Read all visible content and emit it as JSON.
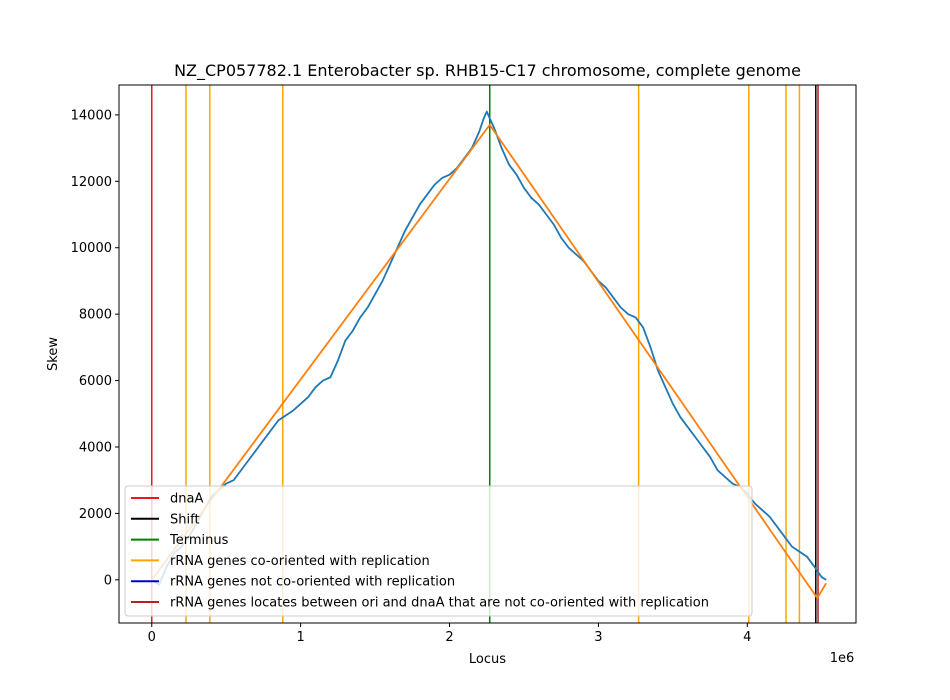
{
  "chart_data": {
    "type": "line",
    "title": "NZ_CP057782.1 Enterobacter sp. RHB15-C17 chromosome, complete genome",
    "xlabel": "Locus",
    "ylabel": "Skew",
    "x_multiplier_label": "1e6",
    "xlim": [
      -220000,
      4730000
    ],
    "ylim": [
      -1300,
      14900
    ],
    "x_ticks": [
      {
        "value": 0,
        "label": "0"
      },
      {
        "value": 1000000,
        "label": "1"
      },
      {
        "value": 2000000,
        "label": "2"
      },
      {
        "value": 3000000,
        "label": "3"
      },
      {
        "value": 4000000,
        "label": "4"
      }
    ],
    "y_ticks": [
      {
        "value": 0,
        "label": "0"
      },
      {
        "value": 2000,
        "label": "2000"
      },
      {
        "value": 4000,
        "label": "4000"
      },
      {
        "value": 6000,
        "label": "6000"
      },
      {
        "value": 8000,
        "label": "8000"
      },
      {
        "value": 10000,
        "label": "10000"
      },
      {
        "value": 12000,
        "label": "12000"
      },
      {
        "value": 14000,
        "label": "14000"
      }
    ],
    "series": [
      {
        "color": "#1f77b4",
        "points": [
          [
            0,
            0
          ],
          [
            50000,
            -150
          ],
          [
            100000,
            400
          ],
          [
            150000,
            800
          ],
          [
            200000,
            1000
          ],
          [
            250000,
            1300
          ],
          [
            300000,
            1700
          ],
          [
            350000,
            2100
          ],
          [
            400000,
            2500
          ],
          [
            450000,
            2700
          ],
          [
            500000,
            2900
          ],
          [
            550000,
            3000
          ],
          [
            600000,
            3300
          ],
          [
            650000,
            3600
          ],
          [
            700000,
            3900
          ],
          [
            750000,
            4200
          ],
          [
            800000,
            4500
          ],
          [
            850000,
            4800
          ],
          [
            900000,
            4950
          ],
          [
            950000,
            5100
          ],
          [
            1000000,
            5300
          ],
          [
            1050000,
            5500
          ],
          [
            1100000,
            5800
          ],
          [
            1150000,
            6000
          ],
          [
            1200000,
            6100
          ],
          [
            1250000,
            6600
          ],
          [
            1300000,
            7200
          ],
          [
            1350000,
            7500
          ],
          [
            1400000,
            7900
          ],
          [
            1450000,
            8200
          ],
          [
            1500000,
            8600
          ],
          [
            1550000,
            9000
          ],
          [
            1600000,
            9500
          ],
          [
            1650000,
            10000
          ],
          [
            1700000,
            10500
          ],
          [
            1750000,
            10900
          ],
          [
            1800000,
            11300
          ],
          [
            1850000,
            11600
          ],
          [
            1900000,
            11900
          ],
          [
            1950000,
            12100
          ],
          [
            2000000,
            12200
          ],
          [
            2050000,
            12400
          ],
          [
            2100000,
            12700
          ],
          [
            2150000,
            13000
          ],
          [
            2200000,
            13500
          ],
          [
            2230000,
            13900
          ],
          [
            2250000,
            14100
          ],
          [
            2270000,
            13900
          ],
          [
            2300000,
            13600
          ],
          [
            2350000,
            13000
          ],
          [
            2400000,
            12500
          ],
          [
            2450000,
            12200
          ],
          [
            2500000,
            11800
          ],
          [
            2550000,
            11500
          ],
          [
            2600000,
            11300
          ],
          [
            2650000,
            11000
          ],
          [
            2700000,
            10700
          ],
          [
            2750000,
            10300
          ],
          [
            2800000,
            10000
          ],
          [
            2850000,
            9800
          ],
          [
            2900000,
            9600
          ],
          [
            2950000,
            9300
          ],
          [
            3000000,
            9000
          ],
          [
            3050000,
            8800
          ],
          [
            3100000,
            8500
          ],
          [
            3150000,
            8200
          ],
          [
            3200000,
            8000
          ],
          [
            3250000,
            7900
          ],
          [
            3300000,
            7600
          ],
          [
            3350000,
            7000
          ],
          [
            3400000,
            6300
          ],
          [
            3450000,
            5800
          ],
          [
            3500000,
            5300
          ],
          [
            3550000,
            4900
          ],
          [
            3600000,
            4600
          ],
          [
            3650000,
            4300
          ],
          [
            3700000,
            4000
          ],
          [
            3750000,
            3700
          ],
          [
            3800000,
            3300
          ],
          [
            3850000,
            3100
          ],
          [
            3900000,
            2900
          ],
          [
            3950000,
            2800
          ],
          [
            4000000,
            2600
          ],
          [
            4050000,
            2300
          ],
          [
            4100000,
            2100
          ],
          [
            4150000,
            1900
          ],
          [
            4200000,
            1600
          ],
          [
            4250000,
            1300
          ],
          [
            4300000,
            1000
          ],
          [
            4350000,
            850
          ],
          [
            4400000,
            700
          ],
          [
            4450000,
            400
          ],
          [
            4480000,
            200
          ],
          [
            4500000,
            80
          ],
          [
            4530000,
            0
          ]
        ]
      },
      {
        "color": "#ff7f0e",
        "points": [
          [
            0,
            0
          ],
          [
            2270000,
            13700
          ],
          [
            4470000,
            -550
          ],
          [
            4530000,
            -100
          ]
        ]
      }
    ],
    "vlines": [
      {
        "x": 0,
        "color": "#e41a1c"
      },
      {
        "x": 230000,
        "color": "#ffa500"
      },
      {
        "x": 390000,
        "color": "#ffa500"
      },
      {
        "x": 880000,
        "color": "#ffa500"
      },
      {
        "x": 2270000,
        "color": "#008000"
      },
      {
        "x": 3270000,
        "color": "#ffa500"
      },
      {
        "x": 4010000,
        "color": "#ffa500"
      },
      {
        "x": 4260000,
        "color": "#ffa500"
      },
      {
        "x": 4350000,
        "color": "#ffa500"
      },
      {
        "x": 4460000,
        "color": "#000000"
      },
      {
        "x": 4475000,
        "color": "#b22222"
      }
    ],
    "legend": {
      "placement": "lower-left",
      "entries": [
        {
          "label": "dnaA",
          "color": "#e41a1c"
        },
        {
          "label": "Shift",
          "color": "#000000"
        },
        {
          "label": "Terminus",
          "color": "#008000"
        },
        {
          "label": "rRNA genes co-oriented with replication",
          "color": "#ffa500"
        },
        {
          "label": "rRNA genes not co-oriented with replication",
          "color": "#0000cd"
        },
        {
          "label": "rRNA genes locates between ori and dnaA that are not co-oriented with replication",
          "color": "#b22222"
        }
      ]
    }
  }
}
